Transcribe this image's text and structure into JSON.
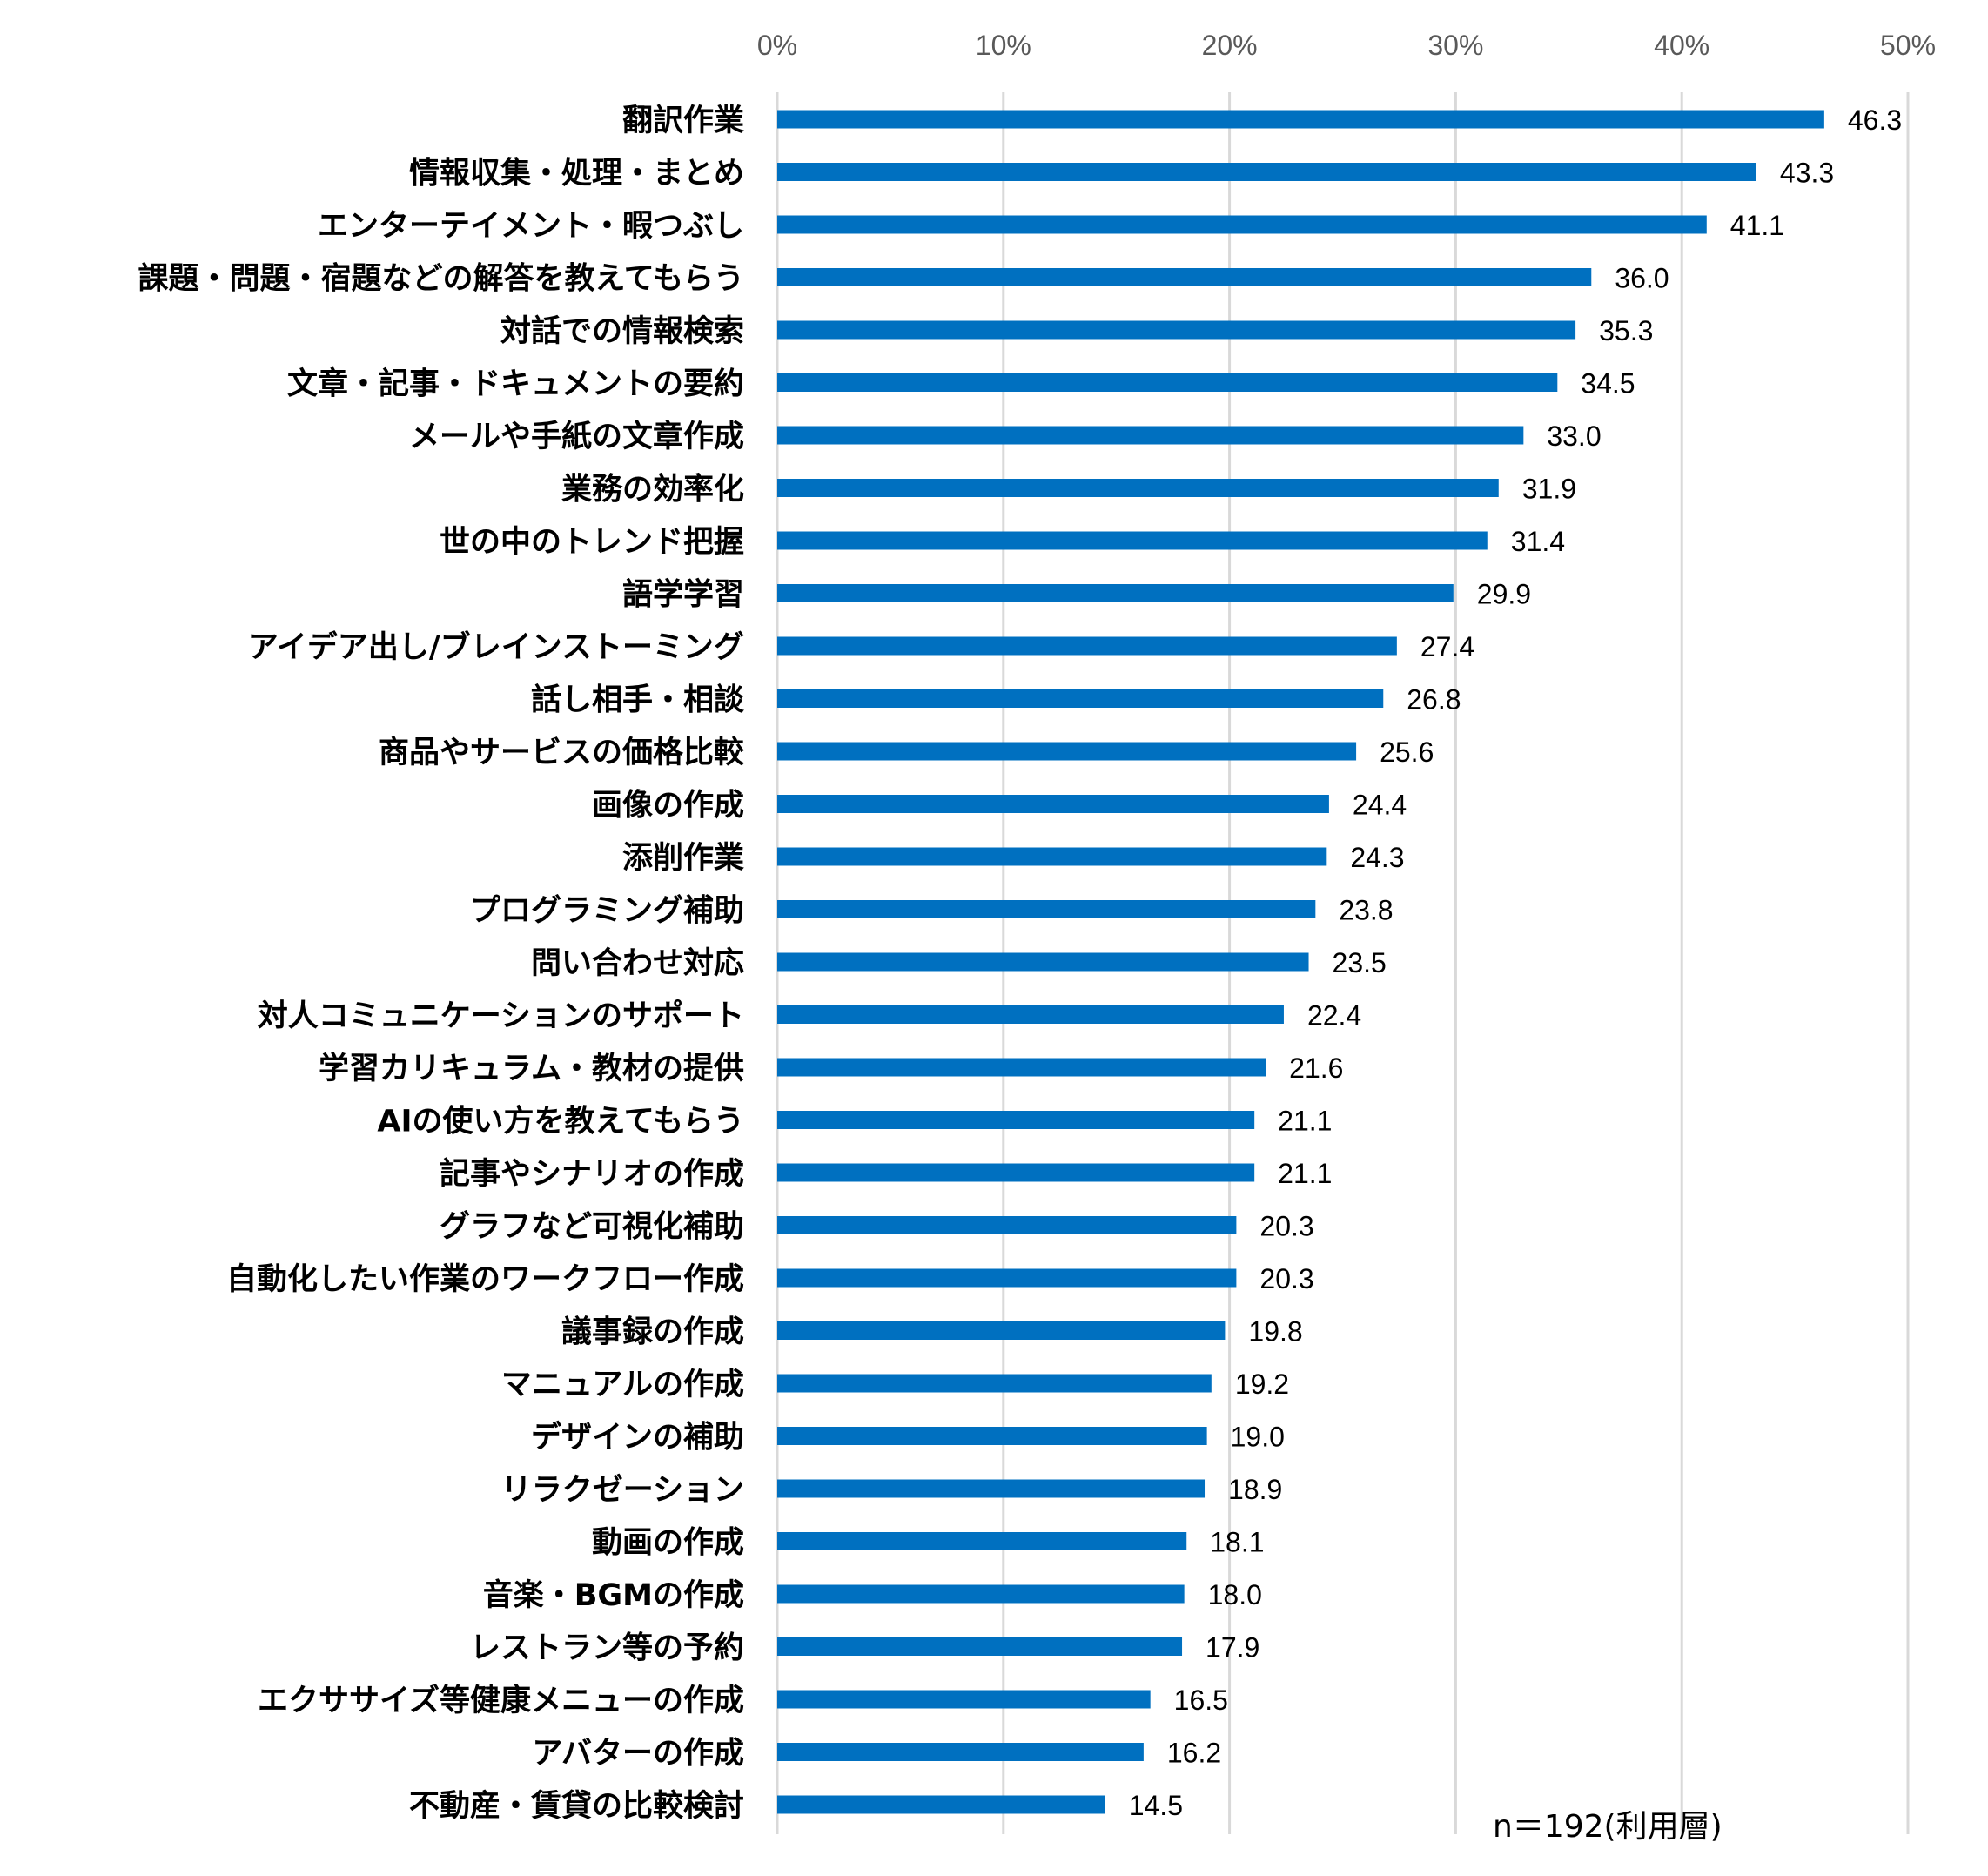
{
  "chart_data": {
    "type": "bar",
    "orientation": "horizontal",
    "title": "",
    "xlabel": "",
    "ylabel": "",
    "xlim": [
      0,
      50
    ],
    "x_ticks": [
      "0%",
      "10%",
      "20%",
      "30%",
      "40%",
      "50%"
    ],
    "grid": true,
    "bar_color": "#0070C0",
    "categories": [
      "翻訳作業",
      "情報収集・処理・まとめ",
      "エンターテイメント・暇つぶし",
      "課題・問題・宿題などの解答を教えてもらう",
      "対話での情報検索",
      "文章・記事・ドキュメントの要約",
      "メールや手紙の文章作成",
      "業務の効率化",
      "世の中のトレンド把握",
      "語学学習",
      "アイデア出し/ブレインストーミング",
      "話し相手・相談",
      "商品やサービスの価格比較",
      "画像の作成",
      "添削作業",
      "プログラミング補助",
      "問い合わせ対応",
      "対人コミュニケーションのサポート",
      "学習カリキュラム・教材の提供",
      "AIの使い方を教えてもらう",
      "記事やシナリオの作成",
      "グラフなど可視化補助",
      "自動化したい作業のワークフロー作成",
      "議事録の作成",
      "マニュアルの作成",
      "デザインの補助",
      "リラクゼーション",
      "動画の作成",
      "音楽・BGMの作成",
      "レストラン等の予約",
      "エクササイズ等健康メニューの作成",
      "アバターの作成",
      "不動産・賃貸の比較検討"
    ],
    "values": [
      46.3,
      43.3,
      41.1,
      36.0,
      35.3,
      34.5,
      33.0,
      31.9,
      31.4,
      29.9,
      27.4,
      26.8,
      25.6,
      24.4,
      24.3,
      23.8,
      23.5,
      22.4,
      21.6,
      21.1,
      21.1,
      20.3,
      20.3,
      19.8,
      19.2,
      19.0,
      18.9,
      18.1,
      18.0,
      17.9,
      16.5,
      16.2,
      14.5
    ],
    "value_labels": [
      "46.3",
      "43.3",
      "41.1",
      "36.0",
      "35.3",
      "34.5",
      "33.0",
      "31.9",
      "31.4",
      "29.9",
      "27.4",
      "26.8",
      "25.6",
      "24.4",
      "24.3",
      "23.8",
      "23.5",
      "22.4",
      "21.6",
      "21.1",
      "21.1",
      "20.3",
      "20.3",
      "19.8",
      "19.2",
      "19.0",
      "18.9",
      "18.1",
      "18.0",
      "17.9",
      "16.5",
      "16.2",
      "14.5"
    ],
    "annotation": "n＝192(利用層)"
  }
}
